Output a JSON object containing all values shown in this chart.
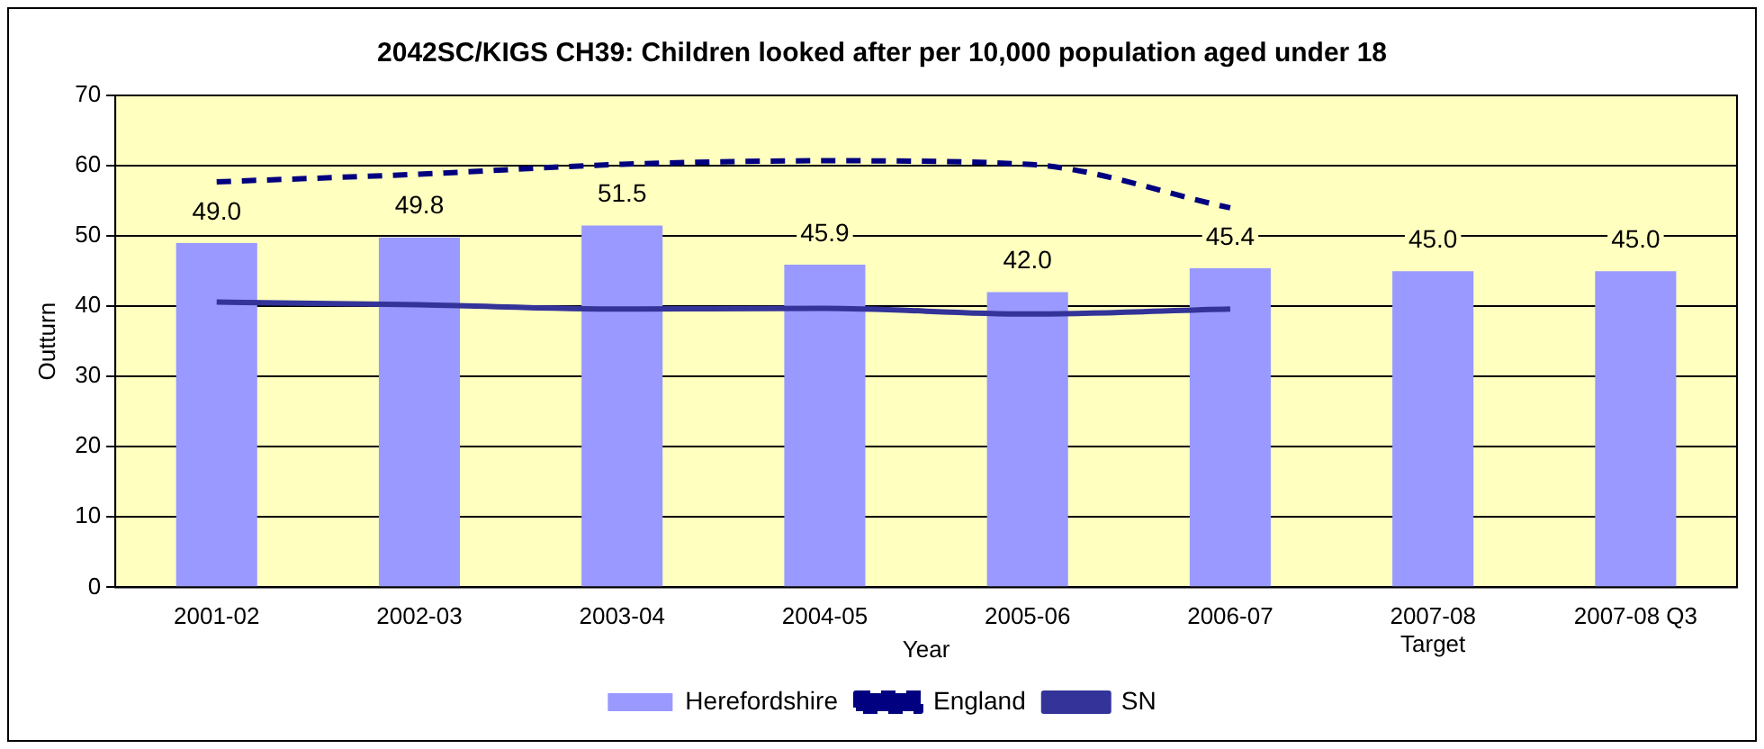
{
  "chart_data": {
    "type": "bar",
    "title": "2042SC/KIGS CH39: Children looked after per 10,000 population aged under 18",
    "xlabel": "Year",
    "ylabel": "Outturn",
    "categories": [
      "2001-02",
      "2002-03",
      "2003-04",
      "2004-05",
      "2005-06",
      "2006-07",
      "2007-08\nTarget",
      "2007-08 Q3"
    ],
    "series": [
      {
        "name": "Herefordshire",
        "color": "#9999ff",
        "values": [
          49.0,
          49.8,
          51.5,
          45.9,
          42.0,
          45.4,
          45.0,
          45.0
        ],
        "value_labels": [
          "49.0",
          "49.8",
          "51.5",
          "45.9",
          "42.0",
          "45.4",
          "45.0",
          "45.0"
        ]
      },
      {
        "name": "England",
        "type": "line",
        "color": "#000080",
        "line_style": "dashed",
        "values": [
          57.7,
          58.8,
          60.2,
          60.7,
          60.2,
          54.0,
          null,
          null
        ]
      },
      {
        "name": "SN",
        "type": "line",
        "color": "#333399",
        "line_style": "solid",
        "values": [
          40.6,
          40.2,
          39.6,
          39.7,
          38.9,
          39.6,
          null,
          null
        ]
      }
    ],
    "ylim": [
      0,
      70
    ],
    "yticks": [
      0,
      10,
      20,
      30,
      40,
      50,
      60,
      70
    ],
    "grid": "y",
    "legend": "bottom",
    "marker": "none"
  }
}
